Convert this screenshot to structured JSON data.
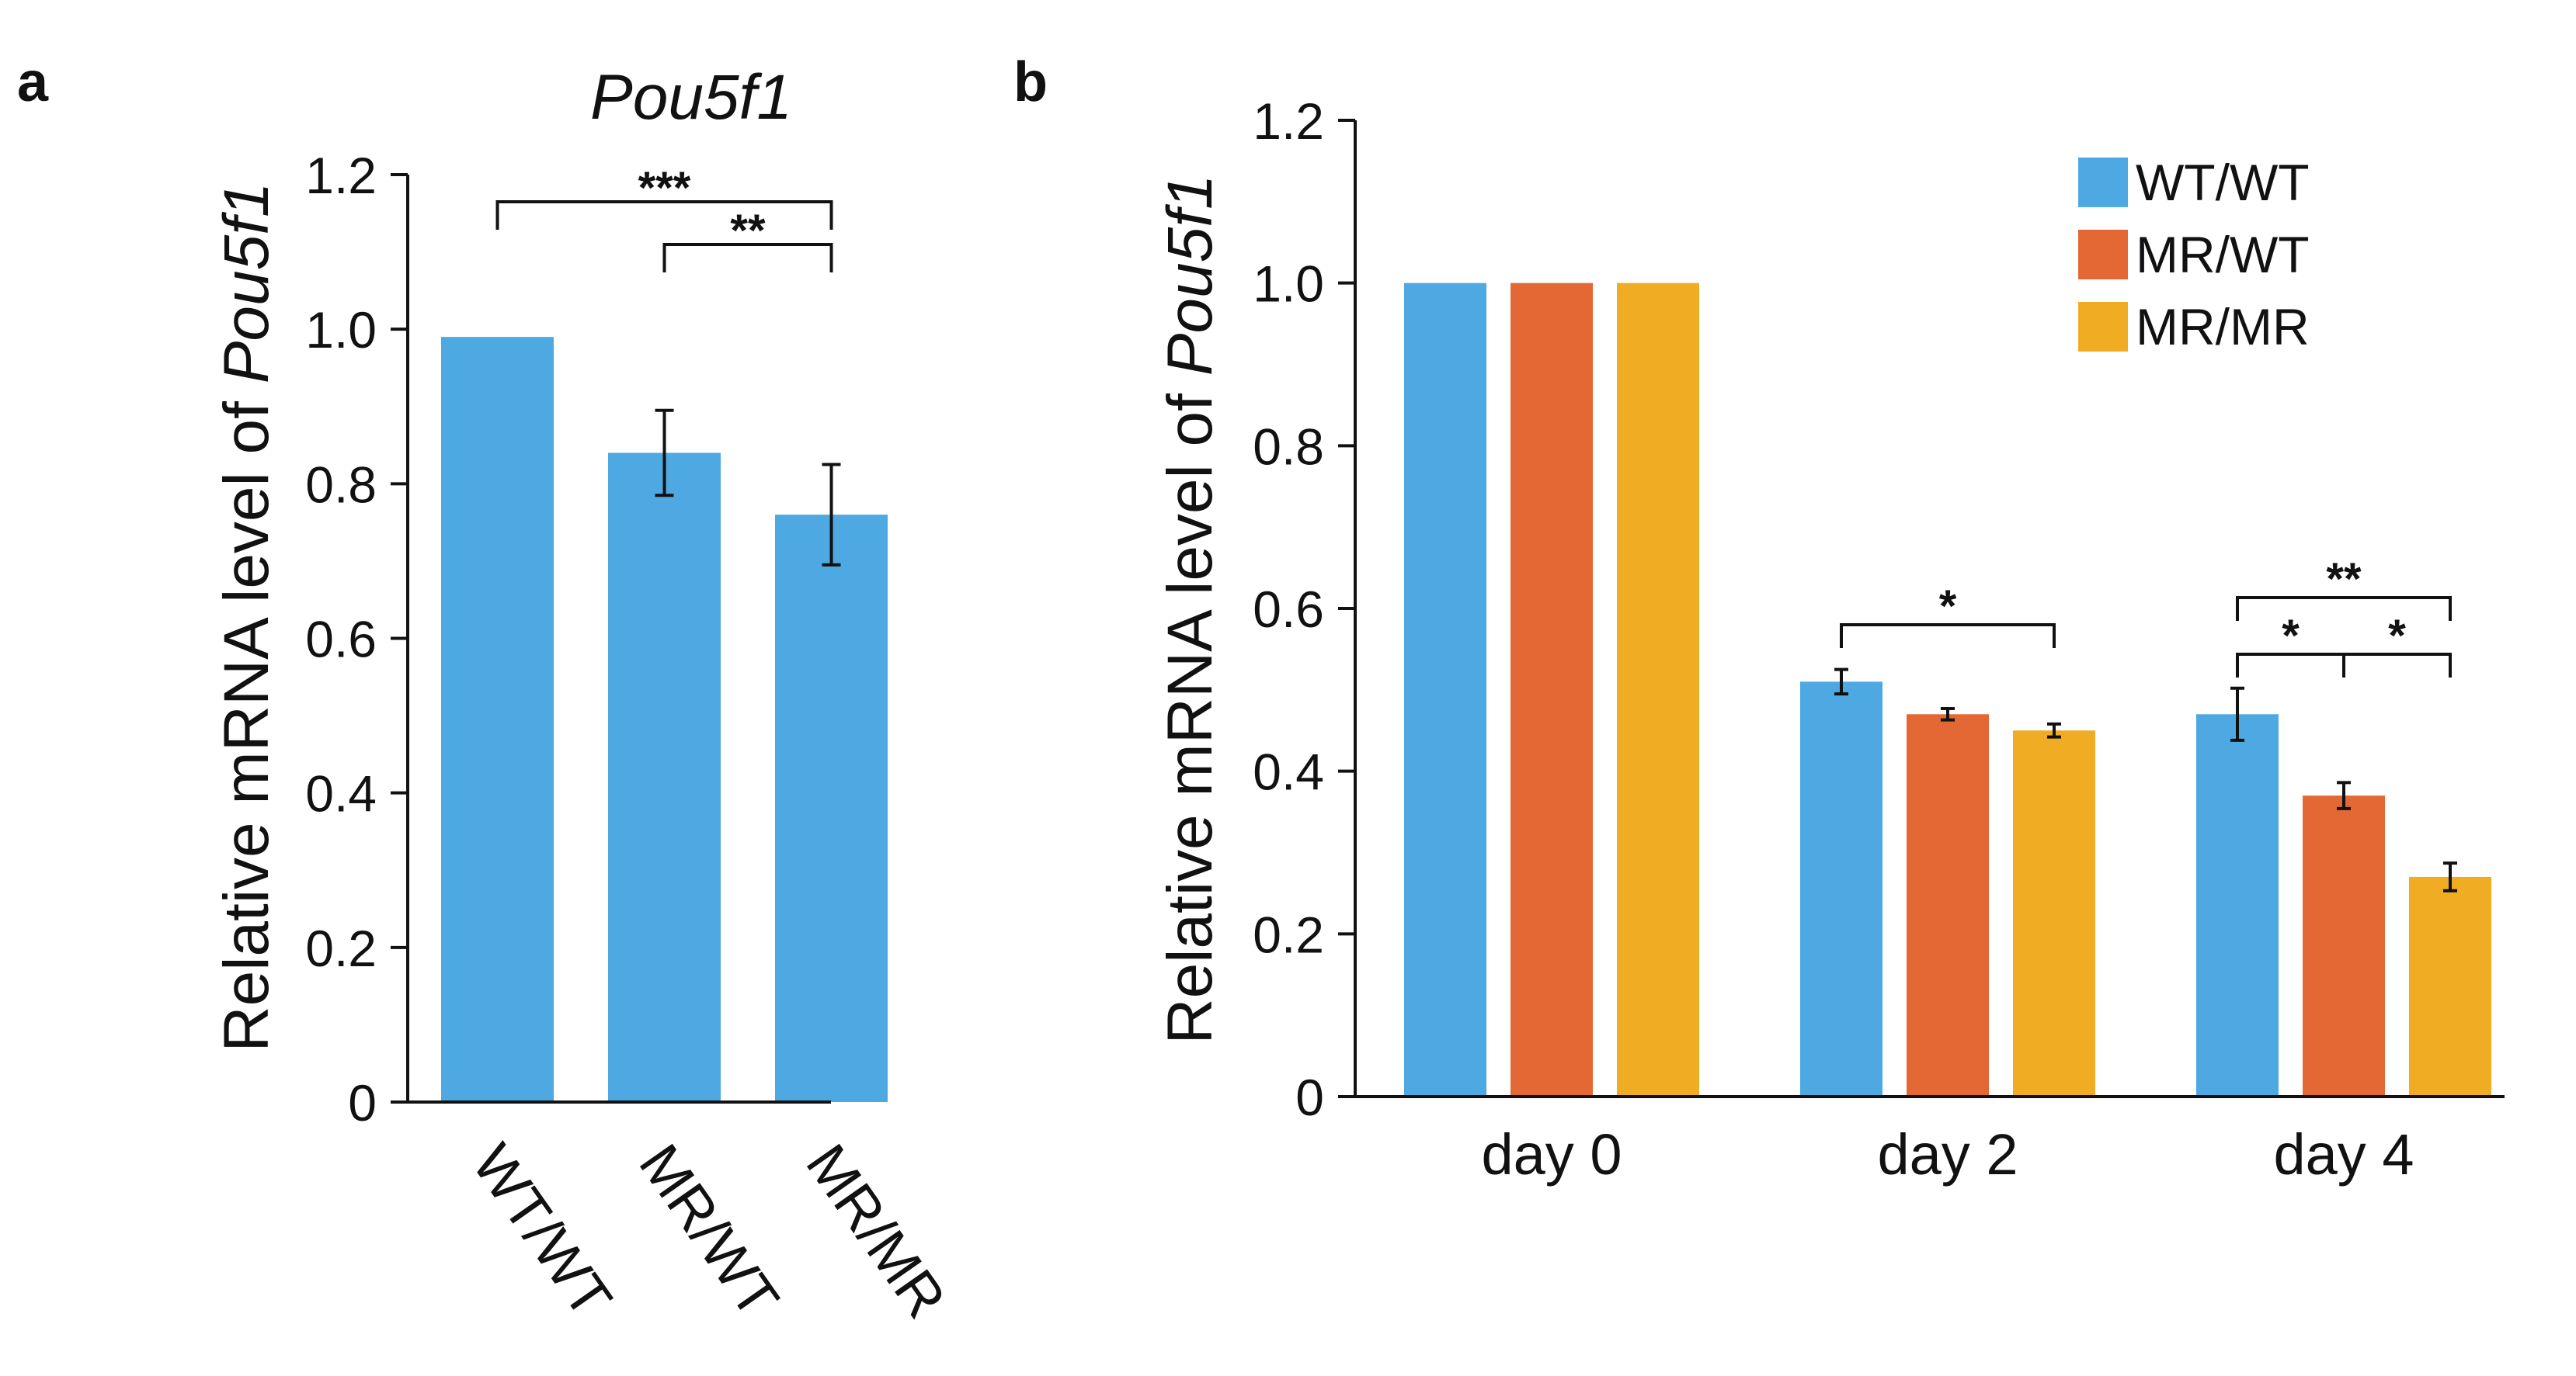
{
  "chart_data": [
    {
      "panel_label": "a",
      "type": "bar",
      "title": "Pou5f1",
      "ylabel_prefix": "Relative mRNA level of ",
      "ylabel_gene": "Pou5f1",
      "ylim": [
        0,
        1.2
      ],
      "yticks": [
        "0",
        "0.2",
        "0.4",
        "0.6",
        "0.8",
        "1.0",
        "1.2"
      ],
      "categories": [
        "WT/WT",
        "MR/WT",
        "MR/MR"
      ],
      "values": [
        0.99,
        0.84,
        0.76
      ],
      "errors": [
        0,
        0.055,
        0.065
      ],
      "bar_color": "#4EA9E2",
      "significance": [
        {
          "from": 0,
          "to": 2,
          "label": "***"
        },
        {
          "from": 1,
          "to": 2,
          "label": "**"
        }
      ]
    },
    {
      "panel_label": "b",
      "type": "bar",
      "ylabel_prefix": "Relative mRNA level of ",
      "ylabel_gene": "Pou5f1",
      "ylim": [
        0,
        1.2
      ],
      "yticks": [
        "0",
        "0.2",
        "0.4",
        "0.6",
        "0.8",
        "1.0",
        "1.2"
      ],
      "categories": [
        "day 0",
        "day 2",
        "day 4"
      ],
      "series": [
        {
          "name": "WT/WT",
          "color": "#4EA9E2",
          "values": [
            1.0,
            0.51,
            0.47
          ],
          "errors": [
            0,
            0.015,
            0.032
          ]
        },
        {
          "name": "MR/WT",
          "color": "#E36834",
          "values": [
            1.0,
            0.47,
            0.37
          ],
          "errors": [
            0,
            0.007,
            0.016
          ]
        },
        {
          "name": "MR/MR",
          "color": "#F0AC22",
          "values": [
            1.0,
            0.45,
            0.27
          ],
          "errors": [
            0,
            0.008,
            0.017
          ]
        }
      ],
      "legend_position": "top-right",
      "significance": [
        {
          "group": 1,
          "from": 0,
          "to": 2,
          "label": "*"
        },
        {
          "group": 2,
          "from": 0,
          "to": 2,
          "label": "**"
        },
        {
          "group": 2,
          "from": 0,
          "to": 1,
          "label": "*"
        },
        {
          "group": 2,
          "from": 1,
          "to": 2,
          "label": "*"
        }
      ]
    }
  ]
}
